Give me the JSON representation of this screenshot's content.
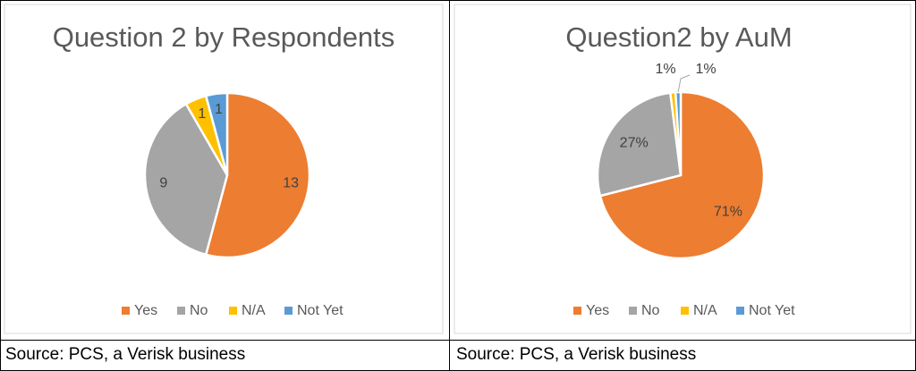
{
  "colors": {
    "yes": "#ED7D31",
    "no": "#A5A5A5",
    "na": "#FFC000",
    "notyet": "#5B9BD5",
    "border": "#000000",
    "chart_border": "#D9D9D9",
    "text": "#595959"
  },
  "chart_data": [
    {
      "type": "pie",
      "title": "Question 2 by Respondents",
      "categories": [
        "Yes",
        "No",
        "N/A",
        "Not Yet"
      ],
      "values": [
        13,
        9,
        1,
        1
      ],
      "data_labels": [
        "13",
        "9",
        "1",
        "1"
      ],
      "legend": {
        "position": "bottom",
        "entries": [
          "Yes",
          "No",
          "N/A",
          "Not Yet"
        ]
      }
    },
    {
      "type": "pie",
      "title": "Question2 by AuM",
      "categories": [
        "Yes",
        "No",
        "N/A",
        "Not Yet"
      ],
      "values": [
        71,
        27,
        1,
        1
      ],
      "data_labels": [
        "71%",
        "27%",
        "1%",
        "1%"
      ],
      "legend": {
        "position": "bottom",
        "entries": [
          "Yes",
          "No",
          "N/A",
          "Not Yet"
        ]
      }
    }
  ],
  "footer": {
    "left_source": "Source: PCS, a Verisk business",
    "right_source": "Source: PCS, a Verisk business"
  }
}
